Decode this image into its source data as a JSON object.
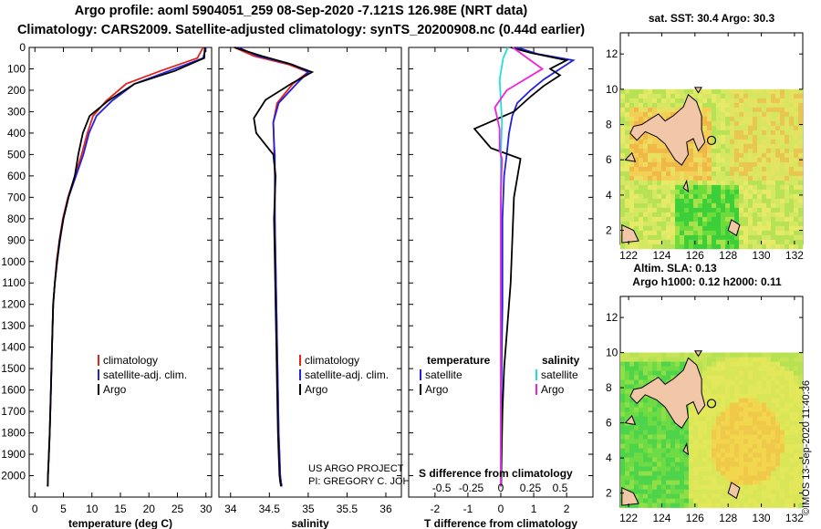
{
  "titles": {
    "line1": "Argo profile: aoml 5904051_259 08-Sep-2020 -7.121S 126.98E (NRT data)",
    "line2": "Climatology: CARS2009. Satellite-adjusted climatology: synTS_20200908.nc (0.44d earlier)"
  },
  "colors": {
    "climatology": "#e8201c",
    "satellite": "#2222dd",
    "argo": "#000000",
    "satellite_salinity": "#22dddd",
    "argo_salinity": "#ee22dd",
    "land": "#f2c7a8",
    "no_data": "#e6ec6a"
  },
  "chart_data": [
    {
      "type": "line",
      "panel": "temperature",
      "xlabel": "temperature (deg C)",
      "ylabel": "",
      "xlim": [
        -1,
        31
      ],
      "ylim": [
        2100,
        0
      ],
      "xticks": [
        "0",
        "5",
        "10",
        "15",
        "20",
        "25",
        "30"
      ],
      "xtick_values": [
        0,
        5,
        10,
        15,
        20,
        25,
        30
      ],
      "yticks": [
        "0",
        "100",
        "200",
        "300",
        "400",
        "500",
        "600",
        "700",
        "800",
        "900",
        "1000",
        "1100",
        "1200",
        "1300",
        "1400",
        "1500",
        "1600",
        "1700",
        "1800",
        "1900",
        "2000"
      ],
      "legend": [
        "climatology",
        "satellite-adj. clim.",
        "Argo"
      ],
      "series": [
        {
          "name": "climatology",
          "color": "#e8201c",
          "x": [
            29.5,
            28.5,
            22,
            16,
            12.5,
            10.2,
            9.2,
            8.2,
            7.0,
            5.8,
            4.9,
            4.3,
            3.8,
            3.5,
            3.2,
            3.0,
            2.8,
            2.6,
            2.45,
            2.3,
            2.25
          ],
          "y": [
            0,
            50,
            110,
            170,
            250,
            320,
            400,
            500,
            600,
            700,
            800,
            900,
            1000,
            1100,
            1200,
            1400,
            1600,
            1800,
            1900,
            2000,
            2050
          ]
        },
        {
          "name": "satellite-adj. clim.",
          "color": "#2222dd",
          "x": [
            30.0,
            29.5,
            23.5,
            17.5,
            13.5,
            10.8,
            9.5,
            8.5,
            7.2,
            5.9,
            5.0,
            4.4,
            3.9,
            3.5,
            3.2,
            3.0,
            2.8,
            2.6,
            2.45,
            2.3,
            2.25
          ],
          "y": [
            0,
            50,
            110,
            170,
            250,
            320,
            400,
            500,
            600,
            700,
            800,
            900,
            1000,
            1100,
            1200,
            1400,
            1600,
            1800,
            1900,
            2000,
            2050
          ]
        },
        {
          "name": "Argo",
          "color": "#000000",
          "x": [
            29.8,
            29.7,
            24.5,
            17.5,
            12.8,
            9.6,
            8.4,
            7.6,
            7.0,
            5.9,
            5.0,
            4.35,
            3.9,
            3.5,
            3.2,
            3.0,
            2.8,
            2.6,
            2.45,
            2.3,
            2.25
          ],
          "y": [
            0,
            50,
            110,
            170,
            250,
            320,
            400,
            500,
            600,
            700,
            800,
            900,
            1000,
            1100,
            1200,
            1400,
            1600,
            1800,
            1900,
            2000,
            2050
          ]
        }
      ]
    },
    {
      "type": "line",
      "panel": "salinity",
      "xlabel": "salinity",
      "xlim": [
        33.85,
        36.2
      ],
      "ylim": [
        2100,
        0
      ],
      "xticks": [
        "34",
        "34.5",
        "35",
        "35.5",
        "36"
      ],
      "xtick_values": [
        34,
        34.5,
        35,
        35.5,
        36
      ],
      "legend": [
        "climatology",
        "satellite-adj. clim.",
        "Argo"
      ],
      "credit": [
        "US ARGO PROJECT",
        "PI: GREGORY C. JOHNSON"
      ],
      "series": [
        {
          "name": "climatology",
          "color": "#e8201c",
          "x": [
            34.05,
            34.3,
            34.75,
            35.0,
            34.8,
            34.6,
            34.55,
            34.56,
            34.56,
            34.57,
            34.57,
            34.58,
            34.59,
            34.6,
            34.61,
            34.62,
            34.63,
            34.64,
            34.65,
            34.66
          ],
          "y": [
            0,
            40,
            80,
            115,
            170,
            260,
            350,
            450,
            500,
            600,
            800,
            1000,
            1200,
            1400,
            1600,
            1800,
            1900,
            2000,
            2030,
            2050
          ]
        },
        {
          "name": "satellite-adj. clim.",
          "color": "#2222dd",
          "x": [
            34.1,
            34.35,
            34.8,
            35.0,
            34.85,
            34.62,
            34.55,
            34.56,
            34.57,
            34.57,
            34.57,
            34.58,
            34.59,
            34.6,
            34.61,
            34.62,
            34.63,
            34.64,
            34.65,
            34.66
          ],
          "y": [
            0,
            40,
            80,
            115,
            170,
            260,
            350,
            450,
            500,
            600,
            800,
            1000,
            1200,
            1400,
            1600,
            1800,
            1900,
            2000,
            2030,
            2050
          ]
        },
        {
          "name": "Argo",
          "color": "#000000",
          "x": [
            34.05,
            34.4,
            34.75,
            35.05,
            34.78,
            34.45,
            34.3,
            34.33,
            34.55,
            34.58,
            34.56,
            34.57,
            34.58,
            34.59,
            34.6,
            34.61,
            34.62,
            34.63,
            34.64,
            34.65
          ],
          "y": [
            0,
            40,
            75,
            115,
            170,
            245,
            330,
            400,
            500,
            600,
            800,
            1000,
            1200,
            1400,
            1600,
            1800,
            1900,
            2000,
            2030,
            2050
          ]
        }
      ]
    },
    {
      "type": "line",
      "panel": "difference",
      "xlabel": "T difference from climatology",
      "secondary_label": "S difference from climatology",
      "xlim": [
        -2.8,
        2.8
      ],
      "ylim": [
        2100,
        0
      ],
      "xticks": [
        "-2",
        "-1",
        "0",
        "1",
        "2"
      ],
      "xtick_values": [
        -2,
        -1,
        0,
        1,
        2
      ],
      "secondary_ticks": [
        "-0.5",
        "-0.25",
        "0",
        "0.25",
        "0.5"
      ],
      "secondary_tick_values": [
        -0.5,
        -0.25,
        0,
        0.25,
        0.5
      ],
      "legend": {
        "temperature_heading": "temperature",
        "salinity_heading": "salinity",
        "temperature_items": [
          "satellite",
          "Argo"
        ],
        "salinity_items": [
          "satellite",
          "Argo"
        ]
      },
      "series": [
        {
          "name": "T satellite",
          "color": "#2222dd",
          "x": [
            0.5,
            1.1,
            2.2,
            1.8,
            1.3,
            0.9,
            0.5,
            0.35,
            0.25,
            0.18,
            0.1,
            0.05,
            0.05,
            0.05,
            0.03,
            0.02,
            0.02,
            0.01,
            0.0,
            0.0
          ],
          "y": [
            0,
            30,
            60,
            100,
            150,
            200,
            260,
            320,
            400,
            500,
            600,
            800,
            1000,
            1200,
            1400,
            1600,
            1800,
            1900,
            2000,
            2050
          ]
        },
        {
          "name": "T Argo",
          "color": "#000000",
          "x": [
            0.3,
            0.9,
            2.0,
            1.5,
            1.8,
            1.3,
            0.9,
            0.4,
            -0.8,
            -0.3,
            0.6,
            0.4,
            0.35,
            0.3,
            0.2,
            0.1,
            0.05,
            0.03,
            0.02,
            0.01
          ],
          "y": [
            0,
            25,
            60,
            100,
            130,
            180,
            230,
            300,
            380,
            470,
            520,
            700,
            900,
            1100,
            1300,
            1500,
            1700,
            1850,
            1950,
            2050
          ]
        },
        {
          "name": "S satellite",
          "color": "#22dddd",
          "x": [
            0.06,
            0.02,
            -0.01,
            0.0,
            0.01,
            0.0,
            0.0,
            0.0,
            0.0,
            0.0,
            0.0,
            0.0
          ],
          "y": [
            0,
            50,
            150,
            250,
            350,
            500,
            700,
            1000,
            1400,
            1800,
            2000,
            2050
          ]
        },
        {
          "name": "S Argo",
          "color": "#ee22dd",
          "x": [
            0.1,
            0.35,
            0.05,
            -0.05,
            -0.01,
            -0.01,
            0.01,
            0.0,
            0.0,
            0.0,
            0.0,
            0.0
          ],
          "y": [
            0,
            100,
            200,
            280,
            380,
            480,
            520,
            700,
            1000,
            1400,
            1800,
            2050
          ]
        }
      ]
    },
    {
      "type": "heatmap",
      "panel": "sst-map",
      "title": "sat. SST: 30.4 Argo: 30.3",
      "xticks": [
        "122",
        "124",
        "126",
        "128",
        "130",
        "132"
      ],
      "yticks": [
        "2",
        "4",
        "6",
        "8",
        "10",
        "12"
      ],
      "xlim": [
        121.5,
        132.5
      ],
      "ylim": [
        1.2,
        13.2
      ],
      "data_extent": {
        "lon": [
          121.5,
          132.5
        ],
        "lat": [
          1.2,
          10.0
        ]
      },
      "marker": {
        "lon": 127.0,
        "lat": 7.1
      }
    },
    {
      "type": "heatmap",
      "panel": "sla-map",
      "title": "Altim. SLA: 0.13",
      "subtitle": "Argo h1000: 0.12 h2000: 0.11",
      "xticks": [
        "122",
        "124",
        "126",
        "128",
        "130",
        "132"
      ],
      "yticks": [
        "2",
        "4",
        "6",
        "8",
        "10",
        "12"
      ],
      "xlim": [
        121.5,
        132.5
      ],
      "ylim": [
        1.2,
        13.2
      ],
      "data_extent": {
        "lon": [
          121.5,
          132.5
        ],
        "lat": [
          1.2,
          10.0
        ]
      },
      "marker": {
        "lon": 127.0,
        "lat": 7.1
      }
    }
  ],
  "footer": {
    "timestamp": "©IMOS 13-Sep-2020 11:40:36"
  }
}
